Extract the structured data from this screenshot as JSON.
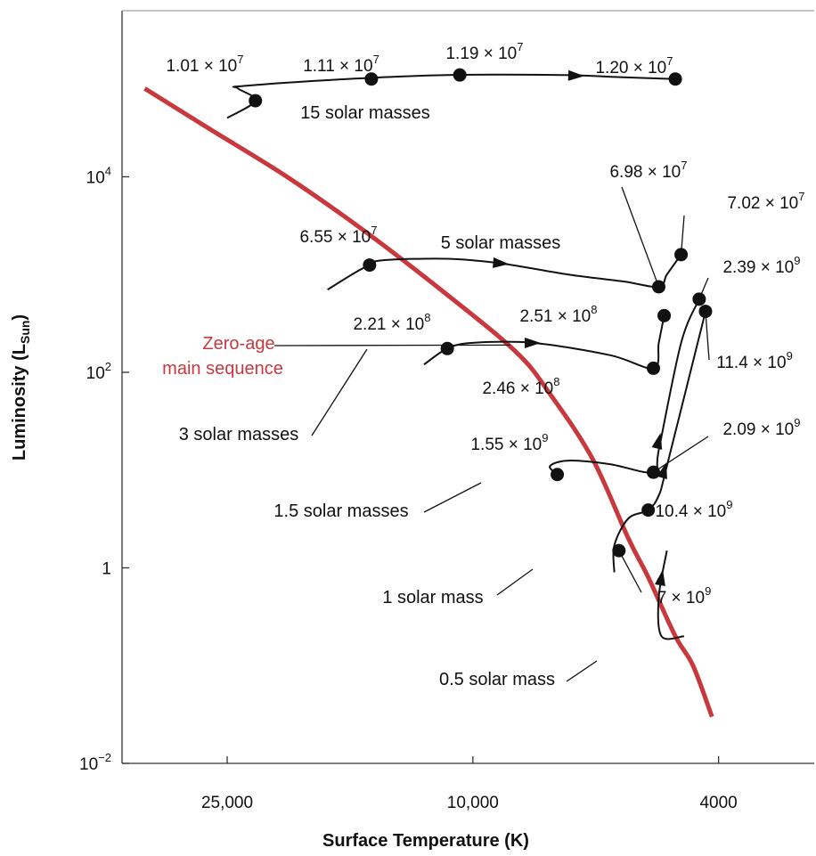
{
  "chart_data": {
    "type": "line",
    "title": "",
    "xlabel": "Surface Temperature (K)",
    "ylabel": "Luminosity (L",
    "ylabel_sub": "Sun",
    "ylabel_close": ")",
    "x_scale": "log",
    "x_reversed": true,
    "y_scale": "log",
    "xlim": [
      37000,
      2800
    ],
    "ylim": [
      0.01,
      500000
    ],
    "x_ticks": [
      {
        "value": 25000,
        "label": "25,000"
      },
      {
        "value": 10000,
        "label": "10,000"
      },
      {
        "value": 4000,
        "label": "4000"
      }
    ],
    "y_ticks": [
      {
        "value": 0.01,
        "base": "10",
        "exp": "−2"
      },
      {
        "value": 1,
        "base": "1",
        "exp": ""
      },
      {
        "value": 100,
        "base": "10",
        "exp": "2"
      },
      {
        "value": 10000,
        "base": "10",
        "exp": "4"
      }
    ],
    "grid": false,
    "zams": {
      "label": [
        "Zero-age",
        "main sequence"
      ],
      "color": "#c8383d",
      "points": [
        [
          34000,
          80000
        ],
        [
          26500,
          30000
        ],
        [
          20000,
          10000
        ],
        [
          15000,
          2800
        ],
        [
          11000,
          620
        ],
        [
          8500,
          160
        ],
        [
          7500,
          60
        ],
        [
          6400,
          13
        ],
        [
          5600,
          2
        ],
        [
          5200,
          0.8
        ],
        [
          4700,
          0.2
        ],
        [
          4400,
          0.1
        ],
        [
          4100,
          0.03
        ]
      ]
    },
    "series": [
      {
        "name": "15 solar masses",
        "points": [
          [
            25000,
            40000
          ],
          [
            22500,
            60000
          ],
          [
            24000,
            80000
          ],
          [
            23500,
            85000
          ],
          [
            16000,
            100000
          ],
          [
            11000,
            110000
          ],
          [
            7200,
            110000
          ],
          [
            5900,
            105000
          ],
          [
            4700,
            100000
          ]
        ],
        "dots": [
          {
            "x": 22500,
            "y": 60000,
            "label": "1.01 × 10",
            "exp": "7"
          },
          {
            "x": 14600,
            "y": 100000,
            "label": "1.11 × 10",
            "exp": "7"
          },
          {
            "x": 10500,
            "y": 110000,
            "label": "1.19 × 10",
            "exp": "7"
          },
          {
            "x": 4700,
            "y": 100000,
            "label": "1.20 × 10",
            "exp": "7"
          }
        ],
        "arrows": [
          [
            6800,
            108000
          ]
        ]
      },
      {
        "name": "5 solar masses",
        "points": [
          [
            17200,
            700
          ],
          [
            15500,
            1050
          ],
          [
            14700,
            1250
          ],
          [
            14000,
            1400
          ],
          [
            11000,
            1450
          ],
          [
            9000,
            1300
          ],
          [
            7000,
            1000
          ],
          [
            5700,
            850
          ],
          [
            5000,
            750
          ],
          [
            4850,
            1000
          ],
          [
            4600,
            1600
          ]
        ],
        "dots": [
          {
            "x": 14700,
            "y": 1250,
            "label": "6.55 × 10",
            "exp": "7"
          },
          {
            "x": 5000,
            "y": 750,
            "label": "6.98 × 10",
            "exp": "7"
          },
          {
            "x": 4600,
            "y": 1600,
            "label": "7.02 × 10",
            "exp": "7"
          }
        ],
        "arrows": [
          [
            9000,
            1300
          ]
        ]
      },
      {
        "name": "3 solar masses",
        "points": [
          [
            12000,
            120
          ],
          [
            11000,
            175
          ],
          [
            10000,
            200
          ],
          [
            8000,
            200
          ],
          [
            6000,
            150
          ],
          [
            5100,
            110
          ],
          [
            5000,
            200
          ],
          [
            4900,
            380
          ]
        ],
        "dots": [
          {
            "x": 11000,
            "y": 175,
            "label": "2.21 × 10",
            "exp": "8"
          },
          {
            "x": 5100,
            "y": 110,
            "label": "2.46 × 10",
            "exp": "8"
          },
          {
            "x": 4900,
            "y": 380,
            "label": "2.51 × 10",
            "exp": "8"
          }
        ],
        "arrows": [
          [
            8000,
            200
          ]
        ]
      },
      {
        "name": "1.5 solar masses",
        "points": [
          [
            7300,
            9.0
          ],
          [
            7500,
            11.0
          ],
          [
            7000,
            12.5
          ],
          [
            6000,
            11.5
          ],
          [
            5100,
            9.5
          ],
          [
            5000,
            16
          ],
          [
            4600,
            200
          ],
          [
            4300,
            560
          ]
        ],
        "dots": [
          {
            "x": 7300,
            "y": 9.0,
            "label": "1.55 × 10",
            "exp": "9"
          },
          {
            "x": 5100,
            "y": 9.5,
            "label": "2.09 × 10",
            "exp": "9"
          },
          {
            "x": 4300,
            "y": 560,
            "label": "2.39 × 10",
            "exp": "9"
          }
        ],
        "arrows": [
          [
            5000,
            20
          ]
        ]
      },
      {
        "name": "1 solar mass",
        "points": [
          [
            5900,
            0.9
          ],
          [
            5900,
            1.7
          ],
          [
            5600,
            3.2
          ],
          [
            5200,
            3.9
          ],
          [
            5000,
            5.5
          ],
          [
            4850,
            11
          ],
          [
            4200,
            420
          ]
        ],
        "dots": [
          {
            "x": 5800,
            "y": 1.5,
            "label": "7 × 10",
            "exp": "9"
          },
          {
            "x": 5200,
            "y": 3.9,
            "label": "10.4 × 10",
            "exp": "9"
          },
          {
            "x": 4200,
            "y": 420,
            "label": "11.4 × 10",
            "exp": "9"
          }
        ],
        "arrows": [
          [
            4900,
            10
          ]
        ]
      },
      {
        "name": "0.5 solar mass",
        "points": [
          [
            4550,
            0.2
          ],
          [
            4950,
            0.2
          ],
          [
            5000,
            0.5
          ],
          [
            4850,
            1.5
          ]
        ],
        "dots": [],
        "arrows": [
          [
            4950,
            0.8
          ]
        ]
      }
    ]
  }
}
